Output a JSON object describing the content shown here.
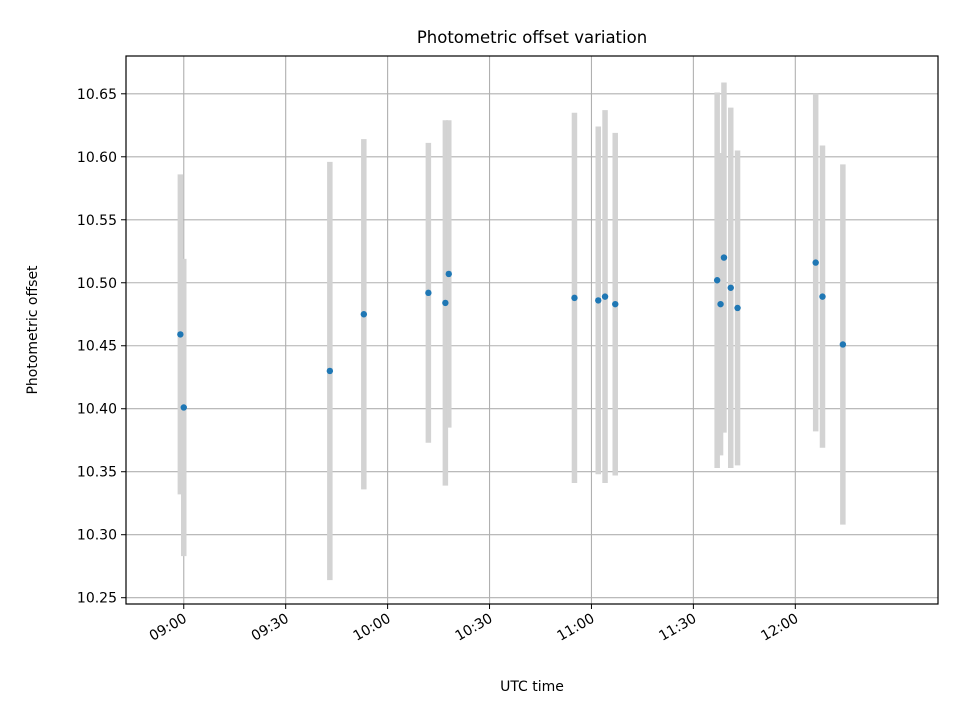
{
  "chart_data": {
    "type": "scatter",
    "title": "Photometric offset variation",
    "xlabel": "UTC time",
    "ylabel": "Photometric offset",
    "x_is_time": true,
    "xlim": [
      "08:43",
      "12:42"
    ],
    "ylim": [
      10.245,
      10.68
    ],
    "grid": true,
    "x_ticks": [
      "09:00",
      "09:30",
      "10:00",
      "10:30",
      "11:00",
      "11:30",
      "12:00"
    ],
    "y_ticks": [
      10.25,
      10.3,
      10.35,
      10.4,
      10.45,
      10.5,
      10.55,
      10.6,
      10.65
    ],
    "y_tick_labels": [
      "10.25",
      "10.30",
      "10.35",
      "10.40",
      "10.45",
      "10.50",
      "10.55",
      "10.60",
      "10.65"
    ],
    "marker_color": "#1f77b4",
    "errorbar_color": "#d3d3d3",
    "points": [
      {
        "time": "08:59",
        "y": 10.459,
        "err": 0.127
      },
      {
        "time": "09:00",
        "y": 10.401,
        "err": 0.118
      },
      {
        "time": "09:43",
        "y": 10.43,
        "err": 0.166
      },
      {
        "time": "09:53",
        "y": 10.475,
        "err": 0.139
      },
      {
        "time": "10:12",
        "y": 10.492,
        "err": 0.119
      },
      {
        "time": "10:17",
        "y": 10.484,
        "err": 0.145
      },
      {
        "time": "10:18",
        "y": 10.507,
        "err": 0.122
      },
      {
        "time": "10:55",
        "y": 10.488,
        "err": 0.147
      },
      {
        "time": "11:02",
        "y": 10.486,
        "err": 0.138
      },
      {
        "time": "11:04",
        "y": 10.489,
        "err": 0.148
      },
      {
        "time": "11:07",
        "y": 10.483,
        "err": 0.136
      },
      {
        "time": "11:37",
        "y": 10.502,
        "err": 0.149
      },
      {
        "time": "11:38",
        "y": 10.483,
        "err": 0.12
      },
      {
        "time": "11:39",
        "y": 10.52,
        "err": 0.139
      },
      {
        "time": "11:41",
        "y": 10.496,
        "err": 0.143
      },
      {
        "time": "11:43",
        "y": 10.48,
        "err": 0.125
      },
      {
        "time": "12:06",
        "y": 10.516,
        "err": 0.134
      },
      {
        "time": "12:08",
        "y": 10.489,
        "err": 0.12
      },
      {
        "time": "12:14",
        "y": 10.451,
        "err": 0.143
      }
    ]
  }
}
